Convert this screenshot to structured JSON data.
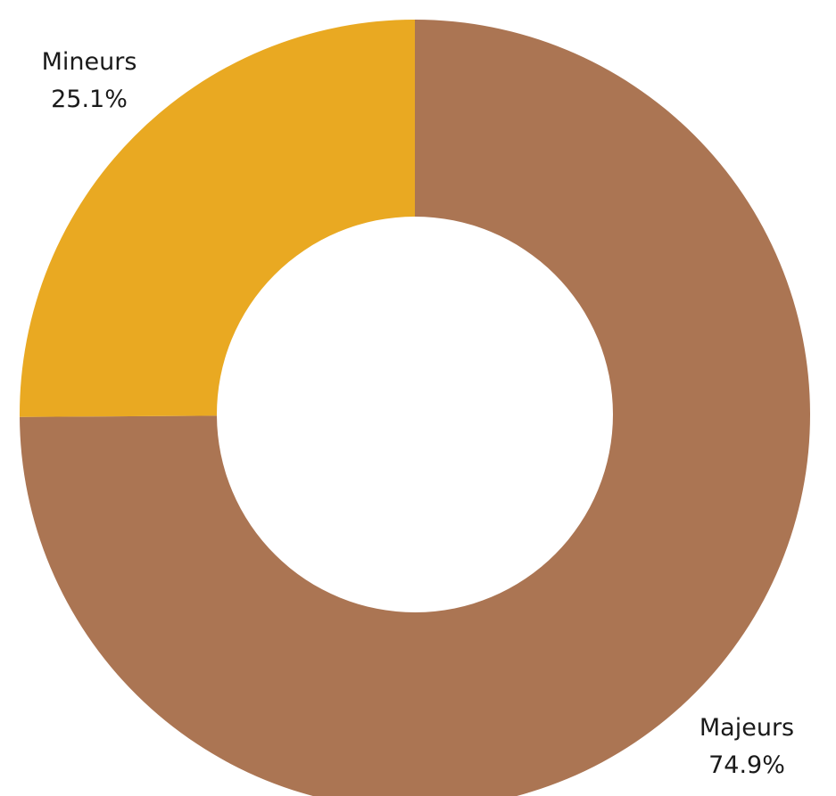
{
  "chart_data": {
    "type": "donut",
    "categories": [
      "Majeurs",
      "Mineurs"
    ],
    "values": [
      74.9,
      25.1
    ],
    "value_labels": [
      "74.9%",
      "25.1%"
    ],
    "colors": [
      "#ab7553",
      "#e9a922"
    ]
  }
}
